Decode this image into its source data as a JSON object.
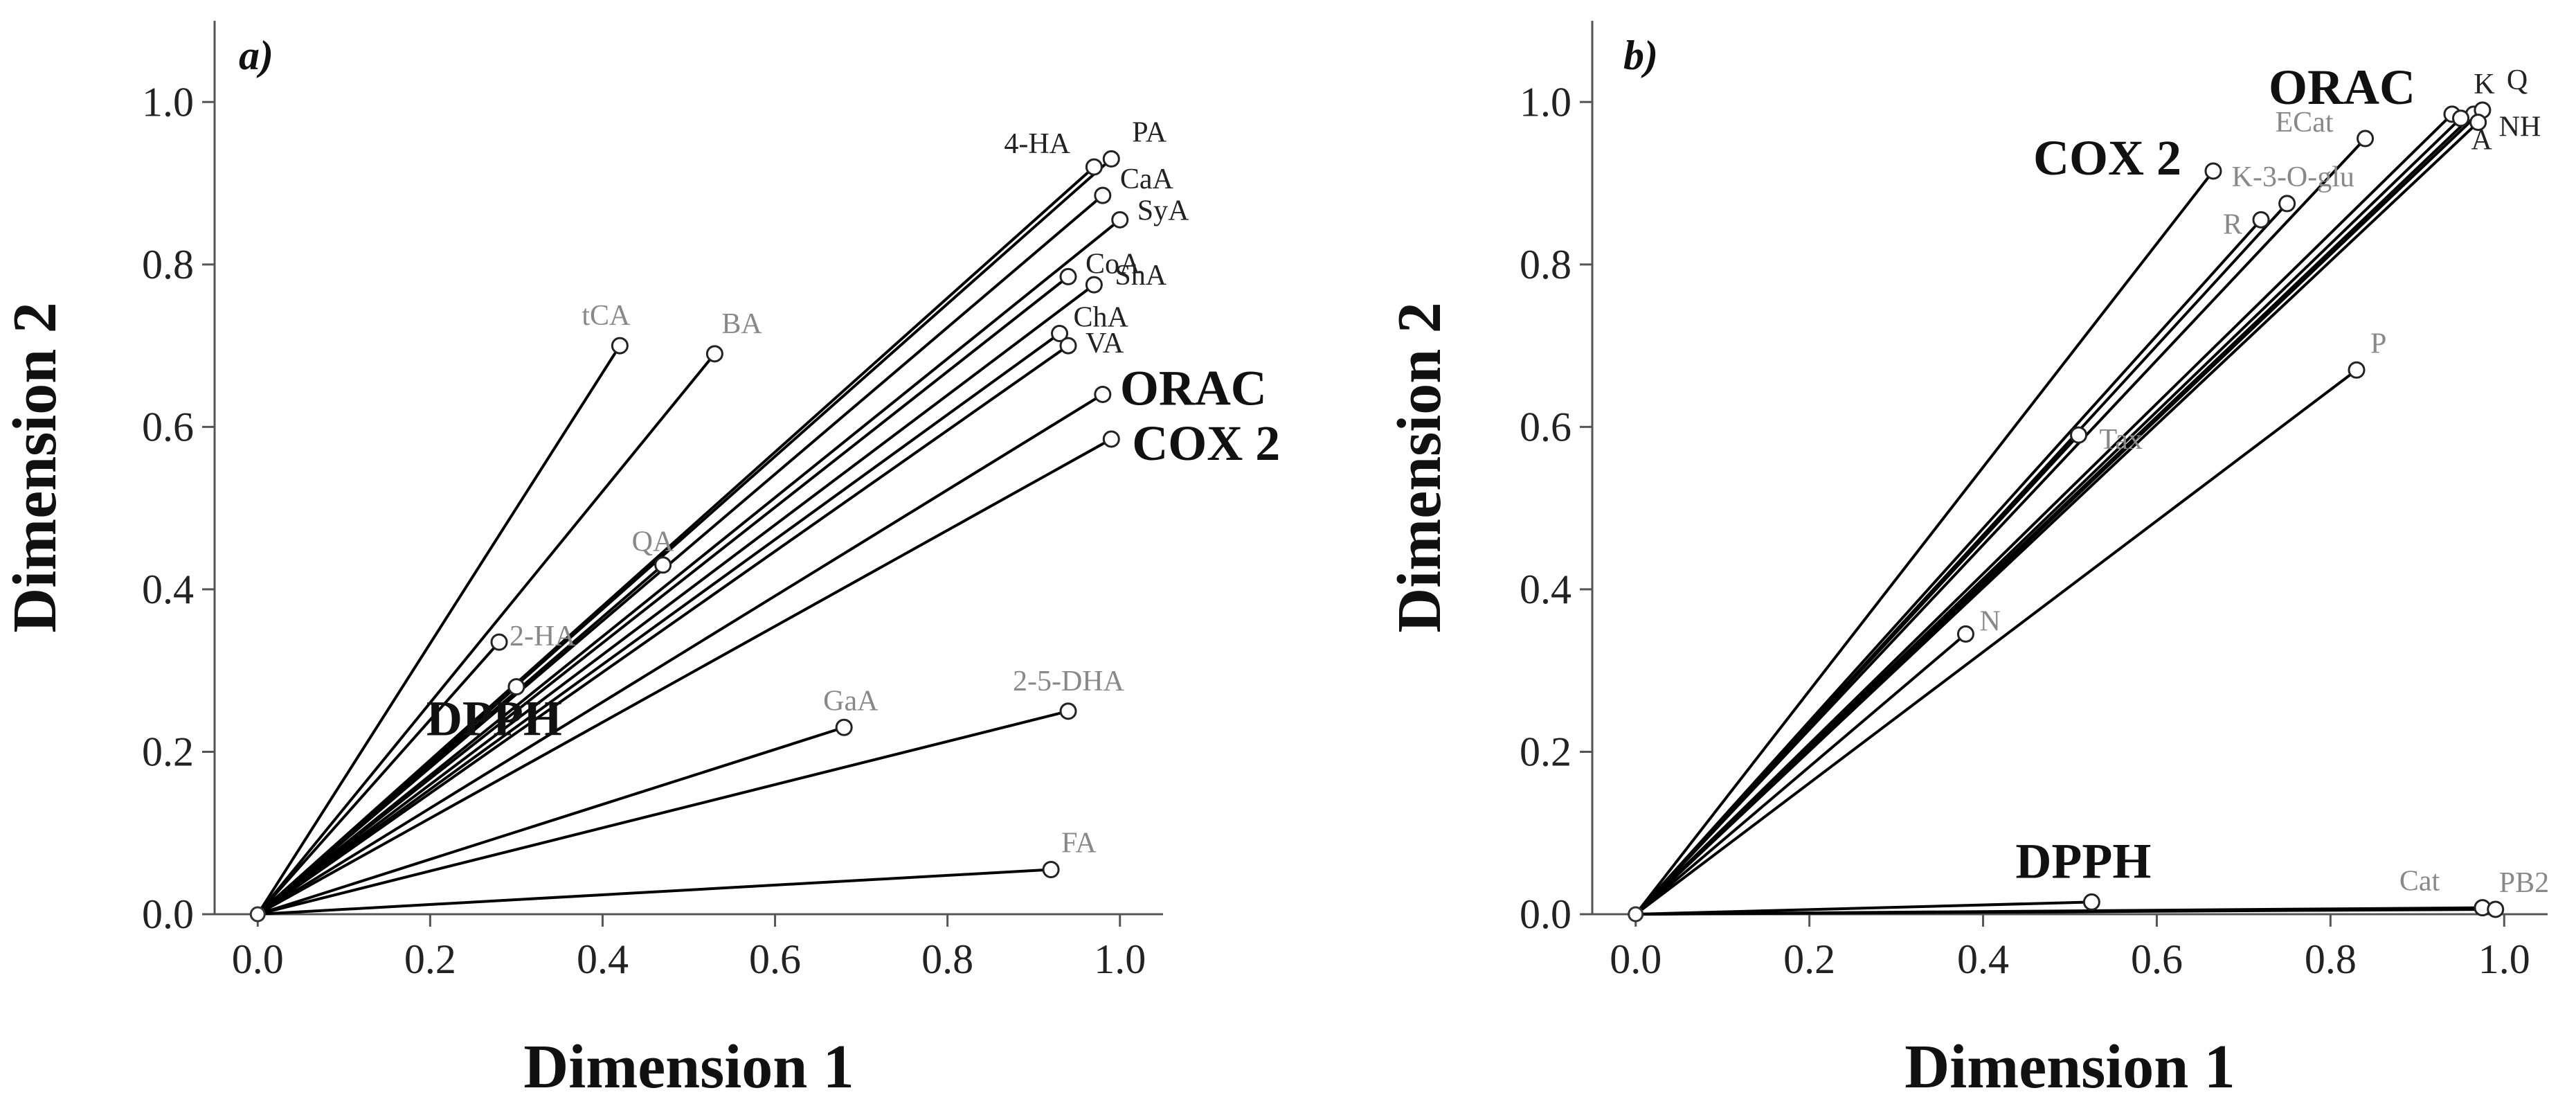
{
  "chart_data": [
    {
      "type": "scatter",
      "panel_label": "a)",
      "xlabel": "Dimension 1",
      "ylabel": "Dimension 2",
      "xlim": [
        -0.05,
        1.05
      ],
      "ylim": [
        0.0,
        1.1
      ],
      "xticks": [
        "0.0",
        "0.2",
        "0.4",
        "0.6",
        "0.8",
        "1.0"
      ],
      "yticks": [
        "0.0",
        "0.2",
        "0.4",
        "0.6",
        "0.8",
        "1.0"
      ],
      "grid": false,
      "points": [
        {
          "label": "PA",
          "x": 0.99,
          "y": 0.93,
          "style": "dark"
        },
        {
          "label": "4-HA",
          "x": 0.97,
          "y": 0.92,
          "style": "dark"
        },
        {
          "label": "CaA",
          "x": 0.98,
          "y": 0.885,
          "style": "dark"
        },
        {
          "label": "SyA",
          "x": 1.0,
          "y": 0.855,
          "style": "dark"
        },
        {
          "label": "CoA",
          "x": 0.94,
          "y": 0.785,
          "style": "dark"
        },
        {
          "label": "ShA",
          "x": 0.97,
          "y": 0.775,
          "style": "dark"
        },
        {
          "label": "ChA",
          "x": 0.93,
          "y": 0.715,
          "style": "dark"
        },
        {
          "label": "VA",
          "x": 0.94,
          "y": 0.7,
          "style": "dark"
        },
        {
          "label": "ORAC",
          "x": 0.98,
          "y": 0.64,
          "style": "bold"
        },
        {
          "label": "COX 2",
          "x": 0.99,
          "y": 0.585,
          "style": "bold"
        },
        {
          "label": "tCA",
          "x": 0.42,
          "y": 0.7,
          "style": "light"
        },
        {
          "label": "BA",
          "x": 0.53,
          "y": 0.69,
          "style": "light"
        },
        {
          "label": "QA",
          "x": 0.47,
          "y": 0.43,
          "style": "light"
        },
        {
          "label": "2-HA",
          "x": 0.28,
          "y": 0.335,
          "style": "light"
        },
        {
          "label": "DPPH",
          "x": 0.3,
          "y": 0.28,
          "style": "bold"
        },
        {
          "label": "GaA",
          "x": 0.68,
          "y": 0.23,
          "style": "light"
        },
        {
          "label": "2-5-DHA",
          "x": 0.94,
          "y": 0.25,
          "style": "light"
        },
        {
          "label": "FA",
          "x": 0.92,
          "y": 0.055,
          "style": "light"
        }
      ]
    },
    {
      "type": "scatter",
      "panel_label": "b)",
      "xlabel": "Dimension 1",
      "ylabel": "Dimension 2",
      "xlim": [
        -0.05,
        1.05
      ],
      "ylim": [
        0.0,
        1.1
      ],
      "xticks": [
        "0.0",
        "0.2",
        "0.4",
        "0.6",
        "0.8",
        "1.0"
      ],
      "yticks": [
        "0.0",
        "0.2",
        "0.4",
        "0.6",
        "0.8",
        "1.0"
      ],
      "grid": false,
      "points": [
        {
          "label": "ORAC",
          "x": 0.94,
          "y": 0.985,
          "style": "bold"
        },
        {
          "label": "K",
          "x": 0.965,
          "y": 0.985,
          "style": "dark"
        },
        {
          "label": "Q",
          "x": 0.975,
          "y": 0.99,
          "style": "dark"
        },
        {
          "label": "NH",
          "x": 0.97,
          "y": 0.975,
          "style": "dark"
        },
        {
          "label": "A",
          "x": 0.95,
          "y": 0.98,
          "style": "dark"
        },
        {
          "label": "ECat",
          "x": 0.84,
          "y": 0.955,
          "style": "light"
        },
        {
          "label": "COX 2",
          "x": 0.665,
          "y": 0.915,
          "style": "bold"
        },
        {
          "label": "K-3-O-glu",
          "x": 0.75,
          "y": 0.875,
          "style": "light"
        },
        {
          "label": "R",
          "x": 0.72,
          "y": 0.855,
          "style": "light"
        },
        {
          "label": "P",
          "x": 0.83,
          "y": 0.67,
          "style": "light"
        },
        {
          "label": "Tax",
          "x": 0.51,
          "y": 0.59,
          "style": "light"
        },
        {
          "label": "N",
          "x": 0.38,
          "y": 0.345,
          "style": "light"
        },
        {
          "label": "DPPH",
          "x": 0.525,
          "y": 0.015,
          "style": "bold"
        },
        {
          "label": "Cat",
          "x": 0.975,
          "y": 0.008,
          "style": "light"
        },
        {
          "label": "PB2",
          "x": 0.99,
          "y": 0.006,
          "style": "light"
        }
      ]
    }
  ]
}
